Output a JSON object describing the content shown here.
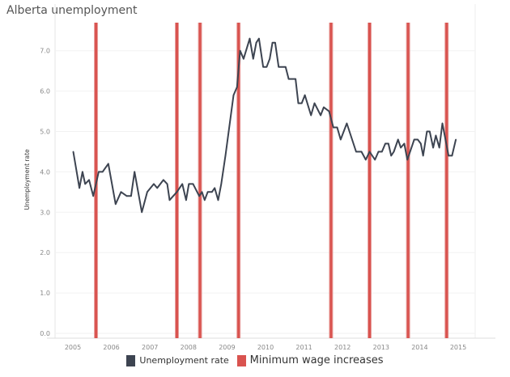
{
  "chart_data": {
    "type": "line",
    "title": "Alberta unemployment",
    "xlabel": "",
    "ylabel": "Unemployment rate",
    "xlim": [
      2005,
      2015
    ],
    "ylim": [
      0,
      7.5
    ],
    "x_ticks": [
      "2005",
      "2006",
      "2007",
      "2008",
      "2009",
      "2010",
      "2011",
      "2012",
      "2013",
      "2014",
      "2015"
    ],
    "y_ticks": [
      "0.0",
      "1.0",
      "2.0",
      "3.0",
      "4.0",
      "5.0",
      "6.0",
      "7.0"
    ],
    "grid": true,
    "legend_position": "bottom",
    "series": [
      {
        "name": "Unemployment rate",
        "color": "#3d4451",
        "x": [
          2005.01,
          2005.17,
          2005.25,
          2005.32,
          2005.42,
          2005.53,
          2005.67,
          2005.77,
          2005.92,
          2006.11,
          2006.25,
          2006.4,
          2006.51,
          2006.6,
          2006.79,
          2006.93,
          2007.1,
          2007.19,
          2007.35,
          2007.45,
          2007.51,
          2007.7,
          2007.84,
          2007.94,
          2008.01,
          2008.12,
          2008.28,
          2008.35,
          2008.42,
          2008.5,
          2008.61,
          2008.68,
          2008.77,
          2008.85,
          2008.96,
          2009.17,
          2009.26,
          2009.34,
          2009.43,
          2009.59,
          2009.68,
          2009.76,
          2009.83,
          2009.94,
          2010.03,
          2010.11,
          2010.18,
          2010.25,
          2010.34,
          2010.52,
          2010.6,
          2010.78,
          2010.85,
          2010.94,
          2011.02,
          2011.18,
          2011.27,
          2011.43,
          2011.51,
          2011.65,
          2011.76,
          2011.86,
          2011.95,
          2012.11,
          2012.35,
          2012.49,
          2012.6,
          2012.7,
          2012.84,
          2012.93,
          2013.02,
          2013.11,
          2013.19,
          2013.26,
          2013.33,
          2013.44,
          2013.51,
          2013.6,
          2013.68,
          2013.86,
          2013.95,
          2014.03,
          2014.09,
          2014.19,
          2014.26,
          2014.35,
          2014.42,
          2014.51,
          2014.59,
          2014.75,
          2014.84,
          2014.94
        ],
        "y": [
          4.5,
          3.6,
          4.0,
          3.7,
          3.8,
          3.4,
          4.0,
          4.0,
          4.2,
          3.2,
          3.5,
          3.4,
          3.4,
          4.0,
          3.0,
          3.5,
          3.7,
          3.6,
          3.8,
          3.7,
          3.3,
          3.5,
          3.7,
          3.3,
          3.7,
          3.7,
          3.4,
          3.5,
          3.3,
          3.5,
          3.5,
          3.6,
          3.3,
          3.7,
          4.4,
          5.9,
          6.1,
          7.0,
          6.8,
          7.3,
          6.8,
          7.2,
          7.3,
          6.6,
          6.6,
          6.8,
          7.2,
          7.2,
          6.6,
          6.6,
          6.3,
          6.3,
          5.7,
          5.7,
          5.9,
          5.4,
          5.7,
          5.4,
          5.6,
          5.5,
          5.1,
          5.1,
          4.8,
          5.2,
          4.5,
          4.5,
          4.3,
          4.5,
          4.3,
          4.5,
          4.5,
          4.7,
          4.7,
          4.4,
          4.5,
          4.8,
          4.6,
          4.7,
          4.3,
          4.8,
          4.8,
          4.7,
          4.4,
          5.0,
          5.0,
          4.6,
          4.9,
          4.6,
          5.2,
          4.4,
          4.4,
          4.8
        ]
      },
      {
        "name": "Minimum wage increases",
        "color": "#d9534f",
        "type": "vertical-lines",
        "x": [
          2005.6,
          2007.7,
          2008.3,
          2009.3,
          2011.7,
          2012.7,
          2013.7,
          2014.7
        ]
      }
    ]
  },
  "legend": {
    "items": [
      {
        "label": "Unemployment rate",
        "color": "#3d4451"
      },
      {
        "label": "Minimum wage increases",
        "color": "#d9534f"
      }
    ]
  }
}
